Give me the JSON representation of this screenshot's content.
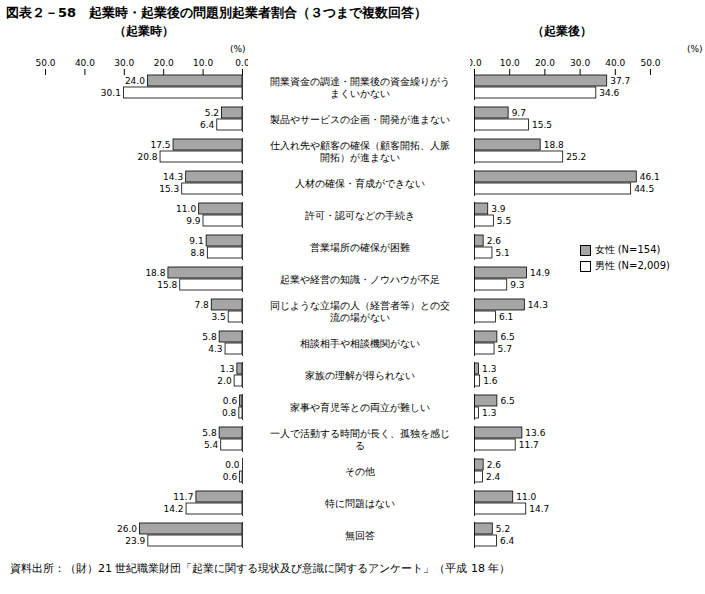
{
  "title": "図表２－58　起業時・起業後の問題別起業者割合（３つまで複数回答）",
  "caption": "資料出所：（財）21 世紀職業財団「起業に関する現状及び意識に関するアンケート」（平成 18 年）",
  "chart_data": [
    {
      "type": "bar",
      "title": "（起業時）",
      "orientation": "horizontal",
      "data_labels": true,
      "grid": false,
      "x_label": "(%)",
      "xlim": [
        50,
        0
      ],
      "xticks": [
        {
          "value": 50,
          "label": "50.0"
        },
        {
          "value": 40,
          "label": "40.0"
        },
        {
          "value": 30,
          "label": "30.0"
        },
        {
          "value": 20,
          "label": "20.0"
        },
        {
          "value": 10,
          "label": "10.0"
        },
        {
          "value": 0,
          "label": "0.0"
        }
      ],
      "categories": [
        "開業資金の調達・開業後の資金繰りがうまくいかない",
        "製品やサービスの企画・開発が進まない",
        "仕入れ先や顧客の確保（顧客開拓、人脈開拓）が進まない",
        "人材の確保・育成ができない",
        "許可・認可などの手続き",
        "営業場所の確保が困難",
        "起業や経営の知識・ノウハウが不足",
        "同じような立場の人（経営者等）との交流の場がない",
        "相談相手や相談機関がない",
        "家族の理解が得られない",
        "家事や育児等との両立が難しい",
        "一人で活動する時間が長く、孤独を感じる",
        "その他",
        "特に問題はない",
        "無回答"
      ],
      "series": [
        {
          "name": "女性 (N=154)",
          "color": "#a6a6a6",
          "values": [
            24.0,
            5.2,
            17.5,
            14.3,
            11.0,
            9.1,
            18.8,
            7.8,
            5.8,
            1.3,
            0.6,
            5.8,
            0.0,
            11.7,
            26.0
          ],
          "value_labels": [
            "24.0",
            "5.2",
            "17.5",
            "14.3",
            "11.0",
            "9.1",
            "18.8",
            "7.8",
            "5.8",
            "1.3",
            "0.6",
            "5.8",
            "0.0",
            "11.7",
            "26.0"
          ]
        },
        {
          "name": "男性 (N=2,009)",
          "color": "#ffffff",
          "values": [
            30.1,
            6.4,
            20.8,
            15.3,
            9.9,
            8.8,
            15.8,
            3.5,
            4.3,
            2.0,
            0.8,
            5.4,
            0.6,
            14.2,
            23.9
          ],
          "value_labels": [
            "30.1",
            "6.4",
            "20.8",
            "15.3",
            "9.9",
            "8.8",
            "15.8",
            "3.5",
            "4.3",
            "2.0",
            "0.8",
            "5.4",
            "0.6",
            "14.2",
            "23.9"
          ]
        }
      ]
    },
    {
      "type": "bar",
      "title": "（起業後）",
      "orientation": "horizontal",
      "data_labels": true,
      "grid": false,
      "legend": "right",
      "x_label": "(%)",
      "xlim": [
        0,
        50
      ],
      "xticks": [
        {
          "value": 0,
          "label": "0.0"
        },
        {
          "value": 10,
          "label": "10.0"
        },
        {
          "value": 20,
          "label": "20.0"
        },
        {
          "value": 30,
          "label": "30.0"
        },
        {
          "value": 40,
          "label": "40.0"
        },
        {
          "value": 50,
          "label": "50.0"
        }
      ],
      "categories": [
        "開業資金の調達・開業後の資金繰りがうまくいかない",
        "製品やサービスの企画・開発が進まない",
        "仕入れ先や顧客の確保（顧客開拓、人脈開拓）が進まない",
        "人材の確保・育成ができない",
        "許可・認可などの手続き",
        "営業場所の確保が困難",
        "起業や経営の知識・ノウハウが不足",
        "同じような立場の人（経営者等）との交流の場がない",
        "相談相手や相談機関がない",
        "家族の理解が得られない",
        "家事や育児等との両立が難しい",
        "一人で活動する時間が長く、孤独を感じる",
        "その他",
        "特に問題はない",
        "無回答"
      ],
      "series": [
        {
          "name": "女性 (N=154)",
          "color": "#a6a6a6",
          "values": [
            37.7,
            9.7,
            18.8,
            46.1,
            3.9,
            2.6,
            14.9,
            14.3,
            6.5,
            1.3,
            6.5,
            13.6,
            2.6,
            11.0,
            5.2
          ],
          "value_labels": [
            "37.7",
            "9.7",
            "18.8",
            "46.1",
            "3.9",
            "2.6",
            "14.9",
            "14.3",
            "6.5",
            "1.3",
            "6.5",
            "13.6",
            "2.6",
            "11.0",
            "5.2"
          ]
        },
        {
          "name": "男性 (N=2,009)",
          "color": "#ffffff",
          "values": [
            34.6,
            15.5,
            25.2,
            44.5,
            5.5,
            5.1,
            9.3,
            6.1,
            5.7,
            1.6,
            1.3,
            11.7,
            2.4,
            14.7,
            6.4
          ],
          "value_labels": [
            "34.6",
            "15.5",
            "25.2",
            "44.5",
            "5.5",
            "5.1",
            "9.3",
            "6.1",
            "5.7",
            "1.6",
            "1.3",
            "11.7",
            "2.4",
            "14.7",
            "6.4"
          ]
        }
      ]
    }
  ]
}
